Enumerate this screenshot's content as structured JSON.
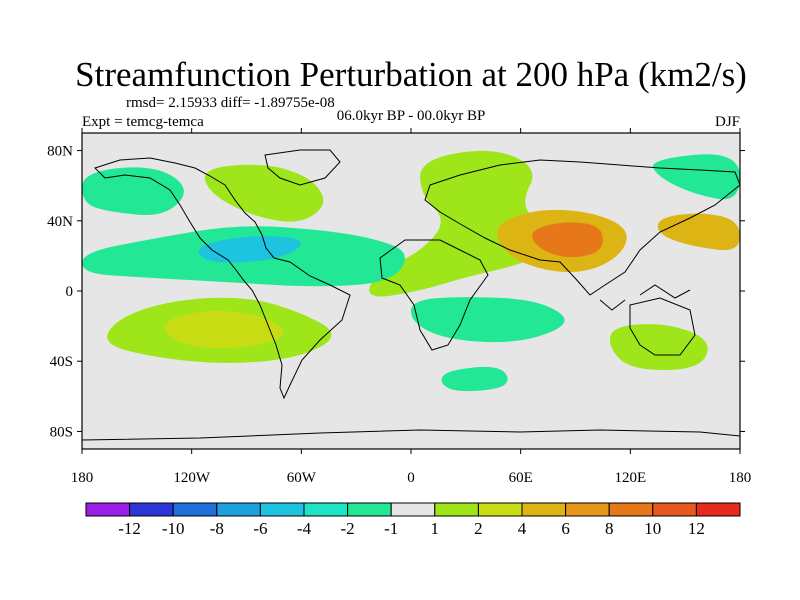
{
  "chart_data": {
    "type": "contour-map",
    "title": "Streamfunction Perturbation at 200 hPa (km2/s)",
    "stats": "rmsd= 2.15933 diff= -1.89755e-08",
    "experiment": "Expt = temcg-temca",
    "period": "06.0kyr BP - 00.0kyr BP",
    "season": "DJF",
    "x_ticks": [
      "180",
      "120W",
      "60W",
      "0",
      "60E",
      "120E",
      "180"
    ],
    "x_tick_lons": [
      -180,
      -120,
      -60,
      0,
      60,
      120,
      180
    ],
    "y_ticks": [
      "80N",
      "40N",
      "0",
      "40S",
      "80S"
    ],
    "y_tick_lats": [
      80,
      40,
      0,
      -40,
      -80
    ],
    "lon_range": [
      -180,
      180
    ],
    "lat_range": [
      -90,
      90
    ],
    "colorbar": {
      "colors": [
        "#9b1ee6",
        "#2c36d6",
        "#1e6fd9",
        "#1ea0e0",
        "#1ec3df",
        "#1ee3c5",
        "#22e896",
        "#e6e6e6",
        "#9ee61a",
        "#c8dc14",
        "#dcb414",
        "#e6961a",
        "#e6781a",
        "#e65a1e",
        "#e62a1e"
      ],
      "labels": [
        "-12",
        "-10",
        "-8",
        "-6",
        "-4",
        "-2",
        "-1",
        "1",
        "2",
        "4",
        "6",
        "8",
        "10",
        "12"
      ]
    },
    "features": [
      {
        "name": "positive-anomaly-n-atlantic",
        "color": "#9ee61a",
        "points": [
          [
            -115,
            70
          ],
          [
            -80,
            73
          ],
          [
            -55,
            65
          ],
          [
            -45,
            50
          ],
          [
            -60,
            38
          ],
          [
            -85,
            42
          ],
          [
            -110,
            55
          ]
        ]
      },
      {
        "name": "positive-anomaly-eurasia",
        "color": "#9ee61a",
        "points": [
          [
            5,
            75
          ],
          [
            45,
            82
          ],
          [
            70,
            70
          ],
          [
            60,
            50
          ],
          [
            70,
            38
          ],
          [
            80,
            25
          ],
          [
            60,
            15
          ],
          [
            30,
            8
          ],
          [
            5,
            0
          ],
          [
            -25,
            -5
          ],
          [
            -20,
            10
          ],
          [
            5,
            22
          ],
          [
            20,
            40
          ],
          [
            5,
            55
          ]
        ]
      },
      {
        "name": "positive-anomaly-asia-core",
        "color": "#dcb414",
        "points": [
          [
            45,
            38
          ],
          [
            70,
            47
          ],
          [
            100,
            45
          ],
          [
            120,
            35
          ],
          [
            115,
            20
          ],
          [
            95,
            10
          ],
          [
            70,
            12
          ],
          [
            50,
            22
          ]
        ]
      },
      {
        "name": "positive-anomaly-asia-peak",
        "color": "#e6781a",
        "points": [
          [
            65,
            35
          ],
          [
            85,
            40
          ],
          [
            105,
            37
          ],
          [
            105,
            22
          ],
          [
            85,
            18
          ],
          [
            68,
            25
          ]
        ]
      },
      {
        "name": "positive-anomaly-s-pacific",
        "color": "#9ee61a",
        "points": [
          [
            -160,
            -15
          ],
          [
            -130,
            -5
          ],
          [
            -90,
            -3
          ],
          [
            -60,
            -12
          ],
          [
            -38,
            -25
          ],
          [
            -60,
            -38
          ],
          [
            -100,
            -42
          ],
          [
            -140,
            -38
          ],
          [
            -170,
            -30
          ]
        ]
      },
      {
        "name": "positive-anomaly-s-pacific-core",
        "color": "#c8dc14",
        "points": [
          [
            -140,
            -18
          ],
          [
            -110,
            -10
          ],
          [
            -80,
            -14
          ],
          [
            -65,
            -25
          ],
          [
            -90,
            -33
          ],
          [
            -125,
            -32
          ]
        ]
      },
      {
        "name": "positive-anomaly-australia",
        "color": "#9ee61a",
        "points": [
          [
            110,
            -20
          ],
          [
            140,
            -18
          ],
          [
            165,
            -28
          ],
          [
            158,
            -45
          ],
          [
            120,
            -45
          ],
          [
            108,
            -32
          ]
        ]
      },
      {
        "name": "positive-anomaly-w-pacific",
        "color": "#dcb414",
        "points": [
          [
            135,
            42
          ],
          [
            160,
            45
          ],
          [
            180,
            40
          ],
          [
            180,
            22
          ],
          [
            155,
            25
          ],
          [
            135,
            32
          ]
        ]
      },
      {
        "name": "negative-anomaly-n-pacific",
        "color": "#22e896",
        "points": [
          [
            -180,
            68
          ],
          [
            -140,
            72
          ],
          [
            -120,
            58
          ],
          [
            -135,
            42
          ],
          [
            -165,
            45
          ],
          [
            -180,
            50
          ]
        ]
      },
      {
        "name": "negative-anomaly-tropical-band",
        "color": "#22e896",
        "points": [
          [
            -180,
            22
          ],
          [
            -140,
            30
          ],
          [
            -95,
            38
          ],
          [
            -50,
            35
          ],
          [
            -20,
            30
          ],
          [
            0,
            22
          ],
          [
            -10,
            5
          ],
          [
            -50,
            2
          ],
          [
            -100,
            5
          ],
          [
            -150,
            8
          ],
          [
            -180,
            10
          ]
        ]
      },
      {
        "name": "negative-anomaly-tropical-core",
        "color": "#1ec3df",
        "points": [
          [
            -120,
            25
          ],
          [
            -90,
            32
          ],
          [
            -55,
            30
          ],
          [
            -70,
            18
          ],
          [
            -110,
            15
          ]
        ]
      },
      {
        "name": "negative-anomaly-s-indian",
        "color": "#22e896",
        "points": [
          [
            0,
            -5
          ],
          [
            30,
            -3
          ],
          [
            70,
            -5
          ],
          [
            90,
            -18
          ],
          [
            60,
            -30
          ],
          [
            20,
            -28
          ],
          [
            0,
            -18
          ]
        ]
      },
      {
        "name": "negative-anomaly-s-ocean",
        "color": "#22e896",
        "points": [
          [
            20,
            -45
          ],
          [
            50,
            -42
          ],
          [
            55,
            -55
          ],
          [
            25,
            -58
          ],
          [
            15,
            -52
          ]
        ]
      },
      {
        "name": "negative-anomaly-ne-pacific",
        "color": "#22e896",
        "points": [
          [
            130,
            75
          ],
          [
            180,
            80
          ],
          [
            180,
            50
          ],
          [
            155,
            55
          ],
          [
            135,
            65
          ]
        ]
      }
    ]
  }
}
